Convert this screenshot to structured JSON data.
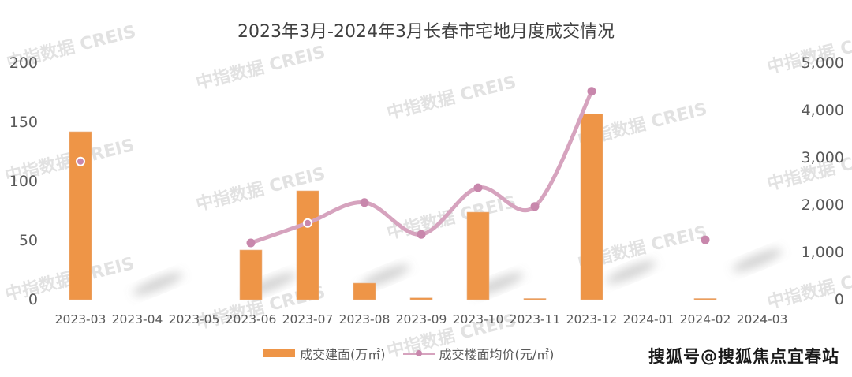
{
  "title": "2023年3月-2024年3月长春市宅地月度成交情况",
  "left_axis": {
    "ticks": [
      "200",
      "150",
      "100",
      "50",
      "0"
    ]
  },
  "right_axis": {
    "ticks": [
      "5,000",
      "4,000",
      "3,000",
      "2,000",
      "1,000",
      "0"
    ]
  },
  "x_labels": [
    "2023-03",
    "2023-04",
    "2023-05",
    "2023-06",
    "2023-07",
    "2023-08",
    "2023-09",
    "2023-10",
    "2023-11",
    "2023-12",
    "2024-01",
    "2024-02",
    "2024-03"
  ],
  "legend": {
    "bar_label": "成交建面(万㎡)",
    "line_label": "成交楼面均价(元/㎡)"
  },
  "watermark_text": "中指数据  CREIS",
  "source_watermark": "搜狐号@搜狐焦点宜春站",
  "colors": {
    "bar": "#EE9547",
    "line": "#D6A3BE",
    "point": "#C887AC",
    "axis": "#D9D9D9"
  },
  "chart_data": {
    "type": "bar+line",
    "title": "2023年3月-2024年3月长春市宅地月度成交情况",
    "categories": [
      "2023-03",
      "2023-04",
      "2023-05",
      "2023-06",
      "2023-07",
      "2023-08",
      "2023-09",
      "2023-10",
      "2023-11",
      "2023-12",
      "2024-01",
      "2024-02",
      "2024-03"
    ],
    "series": [
      {
        "name": "成交建面(万㎡)",
        "type": "bar",
        "axis": "left",
        "values": [
          142,
          0,
          0,
          42,
          92,
          14,
          1.5,
          74,
          1,
          157,
          0,
          1,
          0
        ]
      },
      {
        "name": "成交楼面均价(元/㎡)",
        "type": "line",
        "axis": "right",
        "values": [
          2920,
          null,
          null,
          1200,
          1620,
          2055,
          1380,
          2365,
          1970,
          4405,
          null,
          1265,
          null
        ]
      }
    ],
    "ylim_left": [
      0,
      200
    ],
    "ylim_right": [
      0,
      5000
    ],
    "xlabel": "",
    "ylabel": "",
    "ylabel_right": "",
    "legend_position": "bottom",
    "grid": false
  }
}
